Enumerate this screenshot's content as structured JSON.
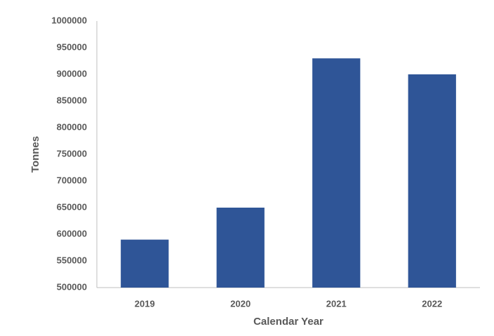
{
  "chart_data": {
    "type": "bar",
    "x_label": "Calendar Year",
    "y_label": "Tonnes",
    "categories": [
      "2019",
      "2020",
      "2021",
      "2022"
    ],
    "values": [
      590000,
      650000,
      930000,
      900000
    ],
    "color": "#2f5597",
    "ylim": [
      500000,
      1000000
    ],
    "yticks": [
      500000,
      550000,
      600000,
      650000,
      700000,
      750000,
      800000,
      850000,
      900000,
      950000,
      1000000
    ],
    "grid": false
  }
}
